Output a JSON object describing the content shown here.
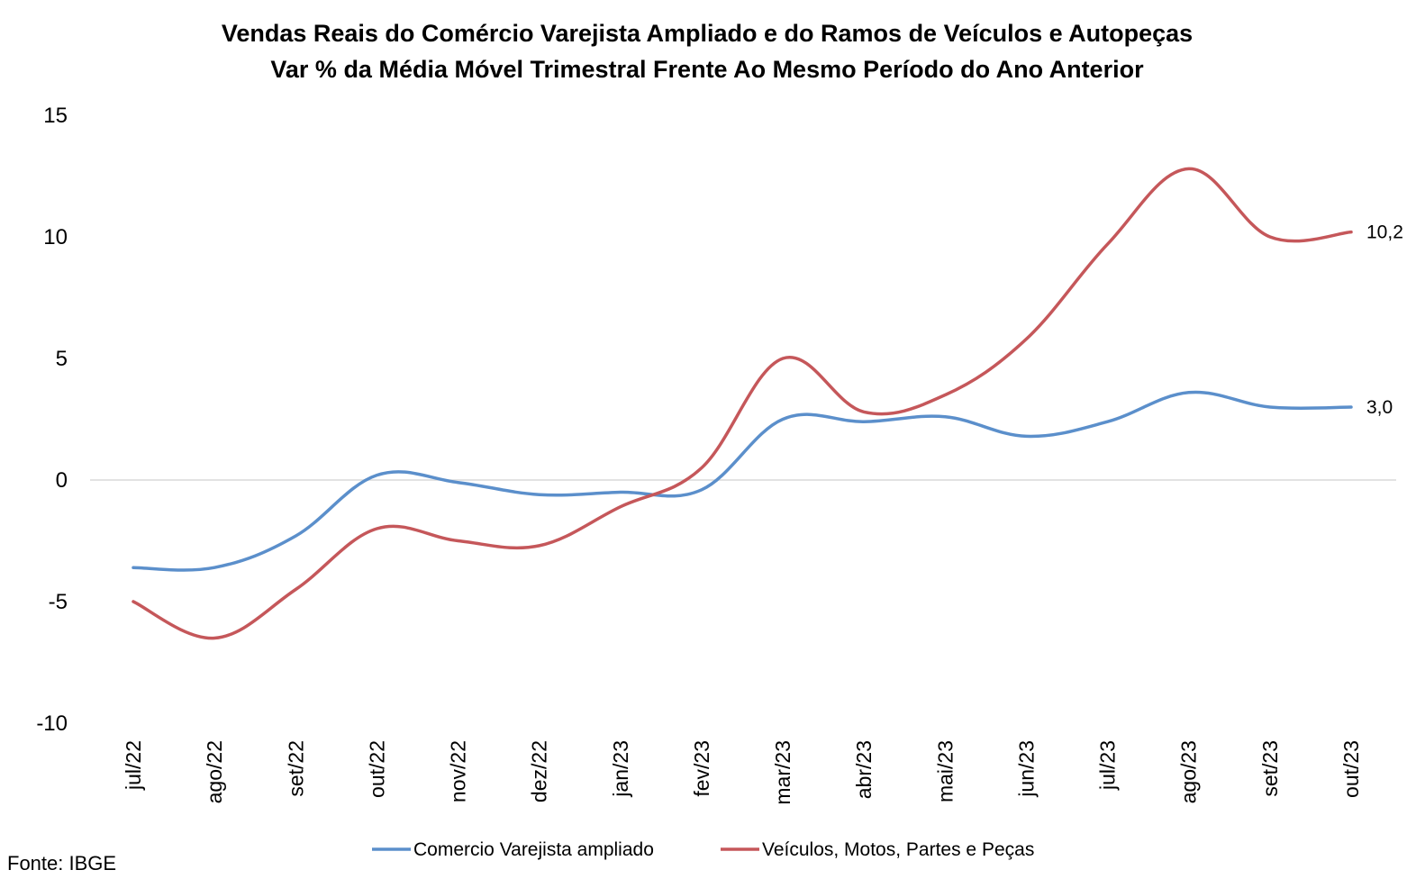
{
  "chart_data": {
    "type": "line",
    "title": "Vendas Reais do Comércio Varejista Ampliado e do Ramos de Veículos e Autopeças",
    "subtitle": "Var % da Média Móvel Trimestral Frente Ao Mesmo Período do Ano Anterior",
    "xlabel": "",
    "ylabel": "",
    "ylim": [
      -10,
      15
    ],
    "yticks": [
      -10,
      -5,
      0,
      5,
      10,
      15
    ],
    "categories": [
      "jul/22",
      "ago/22",
      "set/22",
      "out/22",
      "nov/22",
      "dez/22",
      "jan/23",
      "fev/23",
      "mar/23",
      "abr/23",
      "mai/23",
      "jun/23",
      "jul/23",
      "ago/23",
      "set/23",
      "out/23"
    ],
    "series": [
      {
        "name": "Comercio Varejista ampliado",
        "color": "#5B8FCB",
        "values": [
          -3.6,
          -3.6,
          -2.3,
          0.2,
          -0.1,
          -0.6,
          -0.5,
          -0.4,
          2.5,
          2.4,
          2.6,
          1.8,
          2.4,
          3.6,
          3.0,
          3.0
        ],
        "end_label": "3,0"
      },
      {
        "name": "Veículos, Motos, Partes e Peças",
        "color": "#C5575A",
        "values": [
          -5.0,
          -6.5,
          -4.5,
          -2.0,
          -2.5,
          -2.7,
          -1.1,
          0.5,
          5.0,
          2.8,
          3.5,
          5.8,
          9.7,
          12.8,
          10.0,
          10.2
        ],
        "end_label": "10,2"
      }
    ],
    "grid": false,
    "zero_line": true,
    "legend_position": "bottom"
  },
  "source": "Fonte: IBGE"
}
